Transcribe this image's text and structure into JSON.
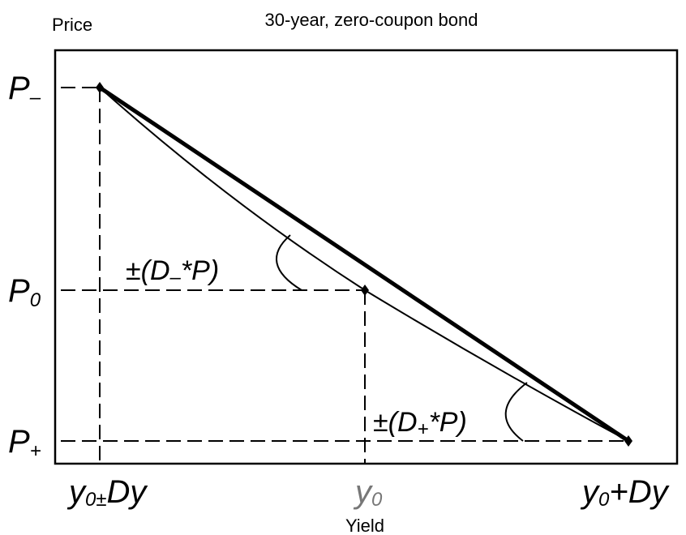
{
  "title": "30-year, zero-coupon bond",
  "axes": {
    "y_label": "Price",
    "x_label": "Yield"
  },
  "price_labels": [
    {
      "main": "P",
      "sub": "–"
    },
    {
      "main": "P",
      "sub": "0"
    },
    {
      "main": "P",
      "sub": "+"
    }
  ],
  "yield_labels": [
    {
      "main": "y",
      "sub": "0±",
      "rest": "Dy"
    },
    {
      "main": "y",
      "sub": "0"
    },
    {
      "main": "y",
      "sub": "0",
      "rest": "+Dy"
    }
  ],
  "annotations": [
    {
      "pre": "±(D",
      "sub": "–",
      "post": "*P)"
    },
    {
      "pre": "±(D",
      "sub": "+",
      "post": "*P)"
    }
  ]
}
